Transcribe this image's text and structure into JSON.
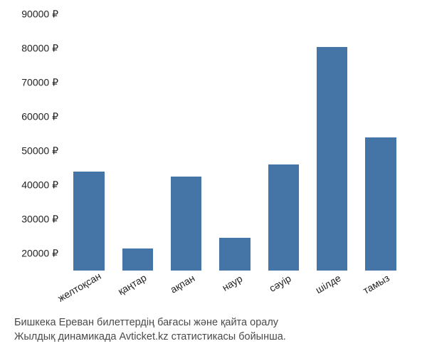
{
  "chart": {
    "type": "bar",
    "y_axis": {
      "min": 15000,
      "max": 90000,
      "tick_step": 10000,
      "ticks": [
        20000,
        30000,
        40000,
        50000,
        60000,
        70000,
        80000,
        90000
      ],
      "currency_suffix": " ₽",
      "label_fontsize": 14,
      "label_color": "#222222"
    },
    "x_axis": {
      "label_fontsize": 14,
      "label_color": "#222222",
      "rotation_deg": -30
    },
    "categories": [
      "желтоқсан",
      "қаңтар",
      "ақпан",
      "наур",
      "сәуір",
      "шілде",
      "тамыз"
    ],
    "values": [
      44000,
      21500,
      42500,
      24500,
      46000,
      80500,
      54000
    ],
    "bar_color": "#4574a6",
    "bar_width": 0.8,
    "background_color": "#ffffff"
  },
  "caption": {
    "line1": "Бишкека Ереван билеттердің бағасы және қайта оралу",
    "line2": "Жылдық динамикада Avticket.kz статистикасы бойынша.",
    "fontsize": 14.5,
    "color": "#4a4a4a"
  }
}
